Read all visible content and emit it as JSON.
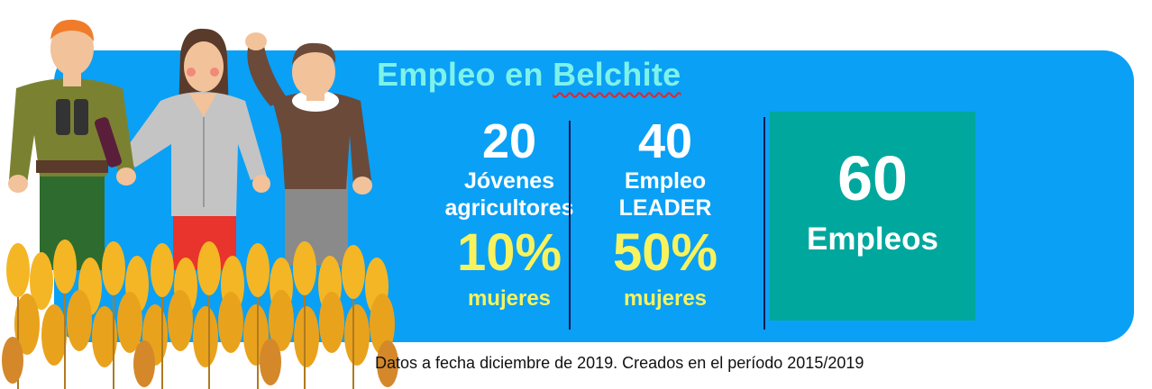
{
  "title": {
    "prefix": "Empleo en",
    "place": "Belchite"
  },
  "stats": [
    {
      "number": "20",
      "label_line1": "Jóvenes",
      "label_line2": "agricultores",
      "percent": "10%",
      "sub": "mujeres"
    },
    {
      "number": "40",
      "label_line1": "Empleo",
      "label_line2": "LEADER",
      "percent": "50%",
      "sub": "mujeres"
    }
  ],
  "total": {
    "number": "60",
    "label": "Empleos"
  },
  "footnote": "Datos a fecha diciembre de 2019. Creados en el período 2015/2019",
  "colors": {
    "panel": "#0aa0f5",
    "title": "#7ef2ea",
    "highlight": "#f7f25e",
    "total_box": "#00a79d",
    "divider": "#0b1a55"
  },
  "illustration": {
    "figures": [
      "farmer-with-binoculars",
      "woman-with-wine-bottle",
      "man-waving"
    ],
    "foreground": "wheat-field"
  }
}
